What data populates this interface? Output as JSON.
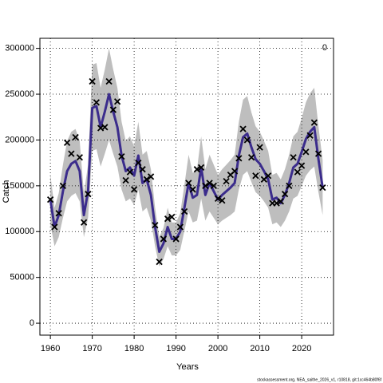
{
  "chart_data": {
    "type": "line",
    "title": "0",
    "xlabel": "Years",
    "ylabel": "Catch",
    "footer": "stockassessment.org, NEA_saithe_2026_v1, r10818, git:1cc464b80f6f",
    "x": [
      1960,
      1961,
      1962,
      1963,
      1964,
      1965,
      1966,
      1967,
      1968,
      1969,
      1970,
      1971,
      1972,
      1973,
      1974,
      1975,
      1976,
      1977,
      1978,
      1979,
      1980,
      1981,
      1982,
      1983,
      1984,
      1985,
      1986,
      1987,
      1988,
      1989,
      1990,
      1991,
      1992,
      1993,
      1994,
      1995,
      1996,
      1997,
      1998,
      1999,
      2000,
      2001,
      2002,
      2003,
      2004,
      2005,
      2006,
      2007,
      2008,
      2009,
      2010,
      2011,
      2012,
      2013,
      2014,
      2015,
      2016,
      2017,
      2018,
      2019,
      2020,
      2021,
      2022,
      2023,
      2024,
      2025
    ],
    "estimate": {
      "color": "#3b2c8c",
      "values": [
        135000,
        105000,
        118000,
        144000,
        166000,
        174000,
        177000,
        166000,
        118000,
        144000,
        235000,
        237000,
        214000,
        231000,
        250000,
        231000,
        214000,
        183000,
        166000,
        170000,
        161000,
        183000,
        153000,
        157000,
        140000,
        105000,
        78000,
        87000,
        105000,
        92000,
        92000,
        100000,
        126000,
        153000,
        137000,
        140000,
        170000,
        140000,
        153000,
        144000,
        135000,
        140000,
        144000,
        148000,
        153000,
        183000,
        203000,
        207000,
        192000,
        179000,
        174000,
        166000,
        157000,
        135000,
        137000,
        131000,
        140000,
        153000,
        170000,
        174000,
        187000,
        201000,
        209000,
        214000,
        179000,
        148000
      ]
    },
    "band": {
      "color": "#bebebe",
      "lower": [
        108000,
        84000,
        94000,
        115000,
        133000,
        139000,
        142000,
        133000,
        94000,
        115000,
        188000,
        190000,
        171000,
        185000,
        200000,
        185000,
        171000,
        146000,
        133000,
        136000,
        129000,
        146000,
        122000,
        126000,
        112000,
        84000,
        62000,
        70000,
        84000,
        74000,
        74000,
        80000,
        101000,
        122000,
        110000,
        112000,
        136000,
        112000,
        122000,
        115000,
        108000,
        112000,
        115000,
        118000,
        122000,
        146000,
        162000,
        166000,
        154000,
        143000,
        139000,
        133000,
        126000,
        108000,
        110000,
        105000,
        112000,
        122000,
        136000,
        139000,
        150000,
        161000,
        167000,
        171000,
        143000,
        118000
      ],
      "upper": [
        162000,
        126000,
        142000,
        173000,
        199000,
        209000,
        212000,
        199000,
        142000,
        173000,
        282000,
        284000,
        257000,
        277000,
        300000,
        277000,
        257000,
        220000,
        199000,
        204000,
        193000,
        220000,
        184000,
        188000,
        168000,
        126000,
        94000,
        104000,
        126000,
        110000,
        110000,
        120000,
        151000,
        184000,
        164000,
        168000,
        204000,
        168000,
        184000,
        173000,
        162000,
        168000,
        173000,
        178000,
        184000,
        220000,
        244000,
        248000,
        230000,
        215000,
        209000,
        199000,
        188000,
        162000,
        164000,
        157000,
        168000,
        184000,
        204000,
        209000,
        224000,
        241000,
        251000,
        257000,
        215000,
        178000
      ]
    },
    "observed": {
      "color": "#000000",
      "values": [
        135000,
        105000,
        120000,
        150000,
        197000,
        185000,
        203000,
        181000,
        110000,
        141000,
        264000,
        241000,
        213000,
        214000,
        264000,
        233000,
        242000,
        182000,
        156000,
        165000,
        146000,
        175000,
        168000,
        157000,
        160000,
        107000,
        67000,
        92000,
        114000,
        116000,
        92000,
        105000,
        122000,
        153000,
        146000,
        168000,
        170000,
        150000,
        153000,
        150000,
        136000,
        134000,
        155000,
        162000,
        166000,
        180000,
        212000,
        200000,
        181000,
        161000,
        192000,
        157000,
        161000,
        131000,
        131000,
        133000,
        141000,
        150000,
        181000,
        165000,
        172000,
        187000,
        205000,
        219000,
        185000,
        148000
      ]
    },
    "xlim": [
      1957.5,
      2027.6
    ],
    "ylim": [
      -13000,
      311000
    ],
    "xticks": [
      1960,
      1970,
      1980,
      1990,
      2000,
      2010,
      2020
    ],
    "yticks": [
      0,
      50000,
      100000,
      150000,
      200000,
      250000,
      300000
    ],
    "grid": true
  }
}
